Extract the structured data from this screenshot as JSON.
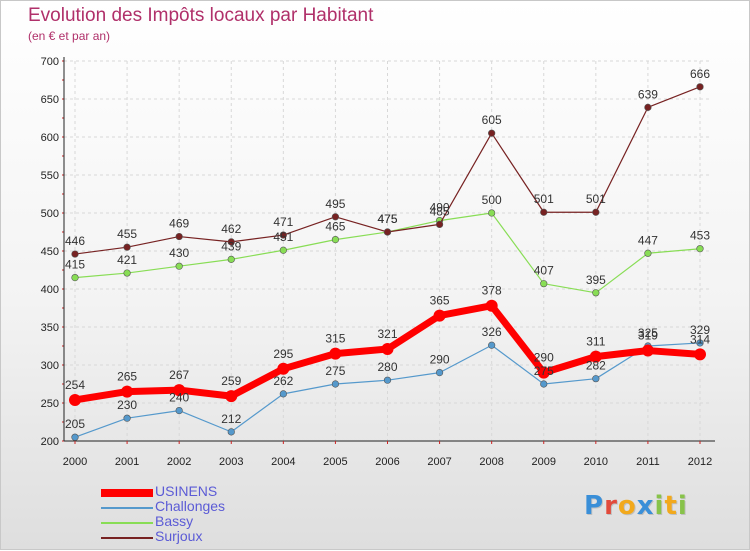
{
  "title": "Evolution des Impôts locaux par Habitant",
  "subtitle": "(en € et par an)",
  "chart_data": {
    "type": "line",
    "title": "Evolution des Impôts locaux par Habitant",
    "subtitle": "(en € et par an)",
    "xlabel": "",
    "ylabel": "",
    "ylim": [
      200,
      700
    ],
    "yticks": [
      200,
      250,
      300,
      350,
      400,
      450,
      500,
      550,
      600,
      650,
      700
    ],
    "categories": [
      "2000",
      "2001",
      "2002",
      "2003",
      "2004",
      "2005",
      "2006",
      "2007",
      "2008",
      "2009",
      "2010",
      "2011",
      "2012"
    ],
    "grid": true,
    "series": [
      {
        "name": "USINENS",
        "values": [
          254,
          265,
          267,
          259,
          295,
          315,
          321,
          365,
          378,
          290,
          311,
          319,
          314
        ],
        "color": "#ff0000",
        "style": "bold"
      },
      {
        "name": "Challonges",
        "values": [
          205,
          230,
          240,
          212,
          262,
          275,
          280,
          290,
          326,
          275,
          282,
          325,
          329
        ],
        "color": "#5599cc",
        "style": "thin"
      },
      {
        "name": "Bassy",
        "values": [
          415,
          421,
          430,
          439,
          451,
          465,
          475,
          490,
          500,
          407,
          395,
          447,
          453
        ],
        "color": "#88dd55",
        "style": "thin"
      },
      {
        "name": "Surjoux",
        "values": [
          446,
          455,
          469,
          462,
          471,
          495,
          475,
          485,
          605,
          501,
          501,
          639,
          666
        ],
        "color": "#772222",
        "style": "thin"
      }
    ]
  },
  "logo": {
    "text": "Proxiti",
    "letters": [
      {
        "ch": "P",
        "color": "#3a8fd8"
      },
      {
        "ch": "r",
        "color": "#e24a3b"
      },
      {
        "ch": "o",
        "color": "#f2a91c"
      },
      {
        "ch": "x",
        "color": "#3a8fd8"
      },
      {
        "ch": "i",
        "color": "#88c34a"
      },
      {
        "ch": "t",
        "color": "#f2a91c"
      },
      {
        "ch": "i",
        "color": "#88c34a"
      }
    ]
  }
}
